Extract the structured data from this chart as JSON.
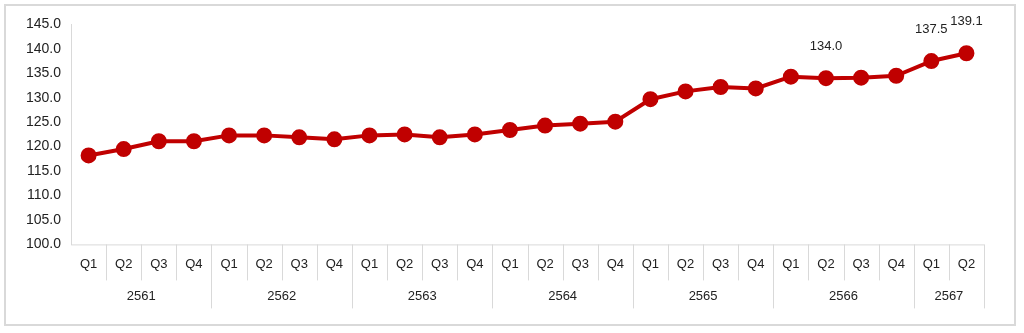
{
  "chart_data": {
    "type": "line",
    "categories": [
      "Q1",
      "Q2",
      "Q3",
      "Q4",
      "Q1",
      "Q2",
      "Q3",
      "Q4",
      "Q1",
      "Q2",
      "Q3",
      "Q4",
      "Q1",
      "Q2",
      "Q3",
      "Q4",
      "Q1",
      "Q2",
      "Q3",
      "Q4",
      "Q1",
      "Q2",
      "Q3",
      "Q4",
      "Q1",
      "Q2"
    ],
    "series": [
      {
        "color": "#c00000",
        "values": [
          118.2,
          119.5,
          121.1,
          121.1,
          122.3,
          122.3,
          121.9,
          121.5,
          122.3,
          122.5,
          121.9,
          122.5,
          123.4,
          124.3,
          124.7,
          125.1,
          129.7,
          131.3,
          132.2,
          131.9,
          134.3,
          134.0,
          134.1,
          134.5,
          137.5,
          139.1
        ],
        "value_labels": [
          null,
          null,
          null,
          null,
          null,
          null,
          null,
          null,
          null,
          null,
          null,
          null,
          null,
          null,
          null,
          null,
          null,
          null,
          null,
          null,
          null,
          "134.0",
          null,
          null,
          "137.5",
          "139.1"
        ]
      }
    ],
    "annotations": [
      "2561",
      "2562",
      "2563",
      "2564",
      "2565",
      "2566",
      "2567"
    ],
    "ylim": [
      100,
      145
    ],
    "yticks": [
      {
        "value": 100,
        "label": "100.0"
      },
      {
        "value": 105,
        "label": "105.0"
      },
      {
        "value": 110,
        "label": "110.0"
      },
      {
        "value": 115,
        "label": "115.0"
      },
      {
        "value": 120,
        "label": "120.0"
      },
      {
        "value": 125,
        "label": "125.0"
      },
      {
        "value": 130,
        "label": "130.0"
      },
      {
        "value": 135,
        "label": "135.0"
      },
      {
        "value": 140,
        "label": "140.0"
      },
      {
        "value": 145,
        "label": "145.0"
      }
    ],
    "grid": false,
    "legend": false,
    "marker": "circle",
    "line_style": "solid"
  }
}
